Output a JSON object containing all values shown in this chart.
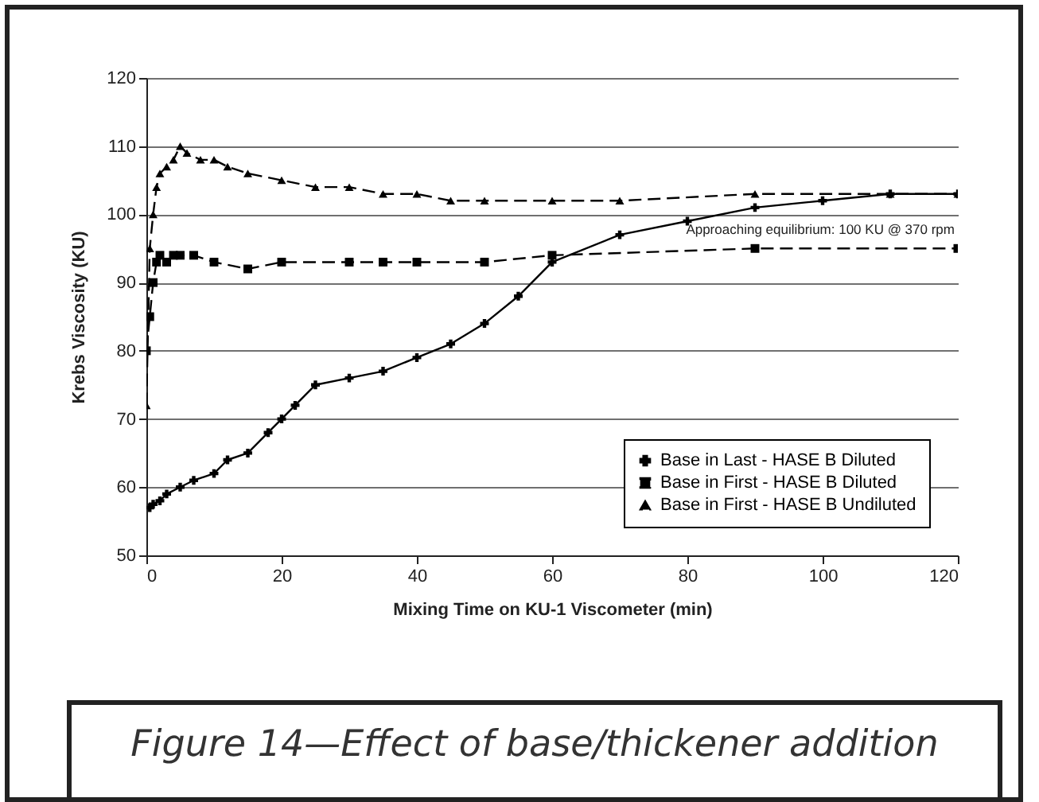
{
  "chart_data": {
    "type": "line",
    "title": "Figure 14—Effect of base/thickener addition",
    "xlabel": "Mixing Time on KU-1 Viscometer (min)",
    "ylabel": "Krebs Viscosity (KU)",
    "xlim": [
      0,
      120
    ],
    "xticks": [
      0,
      20,
      40,
      60,
      80,
      100,
      120
    ],
    "ylim": [
      50,
      120
    ],
    "yticks": [
      50,
      60,
      70,
      80,
      90,
      100,
      110,
      120
    ],
    "grid": "y",
    "legend": "bottom right",
    "annotations": [
      "Approaching equilibrium: 100 KU @ 370 rpm"
    ],
    "series": [
      {
        "name": "Base in Last - HASE B Diluted",
        "color": "#000000",
        "marker": "cross",
        "line_style": "solid",
        "x": [
          0.5,
          1,
          2,
          3,
          5,
          7,
          10,
          12,
          15,
          18,
          20,
          22,
          25,
          30,
          35,
          40,
          45,
          50,
          55,
          60,
          70,
          80,
          90,
          100,
          110,
          120
        ],
        "values": [
          57,
          57.5,
          58,
          59,
          60,
          61,
          62,
          64,
          65,
          68,
          70,
          72,
          75,
          76,
          77,
          79,
          81,
          84,
          88,
          93,
          97,
          99,
          101,
          102,
          103,
          103
        ]
      },
      {
        "name": "Base in First - HASE B Diluted",
        "color": "#000000",
        "marker": "square",
        "line_style": "dashed",
        "x": [
          0,
          0.5,
          1,
          1.5,
          2,
          3,
          4,
          5,
          7,
          10,
          15,
          20,
          30,
          35,
          40,
          50,
          60,
          90,
          120
        ],
        "values": [
          80,
          85,
          90,
          93,
          94,
          93,
          94,
          94,
          94,
          93,
          92,
          93,
          93,
          93,
          93,
          93,
          94,
          95,
          95
        ]
      },
      {
        "name": "Base in First - HASE B Undiluted",
        "color": "#000000",
        "marker": "triangle",
        "line_style": "dashed",
        "x": [
          0,
          0.5,
          1,
          1.5,
          2,
          3,
          4,
          5,
          6,
          8,
          10,
          12,
          15,
          20,
          25,
          30,
          35,
          40,
          45,
          50,
          60,
          70,
          90,
          110,
          120
        ],
        "values": [
          72,
          95,
          100,
          104,
          106,
          107,
          108,
          110,
          109,
          108,
          108,
          107,
          106,
          105,
          104,
          104,
          103,
          103,
          102,
          102,
          102,
          102,
          103,
          103,
          103
        ]
      }
    ]
  }
}
